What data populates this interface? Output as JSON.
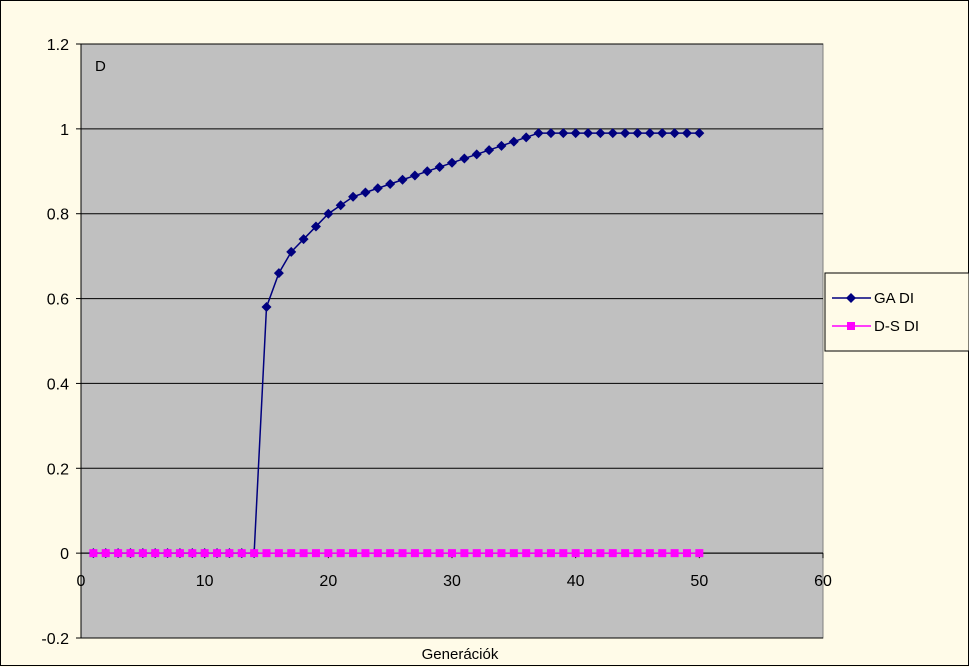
{
  "chart_data": {
    "type": "line",
    "title": "",
    "annotation": "D",
    "xlabel": "Generációk",
    "ylabel": "",
    "xlim": [
      0,
      60
    ],
    "ylim": [
      -0.2,
      1.2
    ],
    "x_ticks": [
      "0",
      "10",
      "20",
      "30",
      "40",
      "50",
      "60"
    ],
    "y_ticks": [
      "1.2",
      "1",
      "0.8",
      "0.6",
      "0.4",
      "0.2",
      "0",
      "-0.2"
    ],
    "grid": "horizontal",
    "legend_position": "right",
    "plot_background": "#C0C0C0",
    "series": [
      {
        "name": "GA DI",
        "color": "#00007F",
        "marker": "diamond",
        "x": [
          1,
          2,
          3,
          4,
          5,
          6,
          7,
          8,
          9,
          10,
          11,
          12,
          13,
          14,
          15,
          16,
          17,
          18,
          19,
          20,
          21,
          22,
          23,
          24,
          25,
          26,
          27,
          28,
          29,
          30,
          31,
          32,
          33,
          34,
          35,
          36,
          37,
          38,
          39,
          40,
          41,
          42,
          43,
          44,
          45,
          46,
          47,
          48,
          49,
          50
        ],
        "values": [
          0,
          0,
          0,
          0,
          0,
          0,
          0,
          0,
          0,
          0,
          0,
          0,
          0,
          0,
          0.58,
          0.66,
          0.71,
          0.74,
          0.77,
          0.8,
          0.82,
          0.84,
          0.85,
          0.86,
          0.87,
          0.88,
          0.89,
          0.9,
          0.91,
          0.92,
          0.93,
          0.94,
          0.95,
          0.96,
          0.97,
          0.98,
          0.99,
          0.99,
          0.99,
          0.99,
          0.99,
          0.99,
          0.99,
          0.99,
          0.99,
          0.99,
          0.99,
          0.99,
          0.99,
          0.99
        ]
      },
      {
        "name": "D-S DI",
        "color": "#FF00FF",
        "marker": "square",
        "x": [
          1,
          2,
          3,
          4,
          5,
          6,
          7,
          8,
          9,
          10,
          11,
          12,
          13,
          14,
          15,
          16,
          17,
          18,
          19,
          20,
          21,
          22,
          23,
          24,
          25,
          26,
          27,
          28,
          29,
          30,
          31,
          32,
          33,
          34,
          35,
          36,
          37,
          38,
          39,
          40,
          41,
          42,
          43,
          44,
          45,
          46,
          47,
          48,
          49,
          50
        ],
        "values": [
          0,
          0,
          0,
          0,
          0,
          0,
          0,
          0,
          0,
          0,
          0,
          0,
          0,
          0,
          0,
          0,
          0,
          0,
          0,
          0,
          0,
          0,
          0,
          0,
          0,
          0,
          0,
          0,
          0,
          0,
          0,
          0,
          0,
          0,
          0,
          0,
          0,
          0,
          0,
          0,
          0,
          0,
          0,
          0,
          0,
          0,
          0,
          0,
          0,
          0
        ]
      }
    ]
  }
}
